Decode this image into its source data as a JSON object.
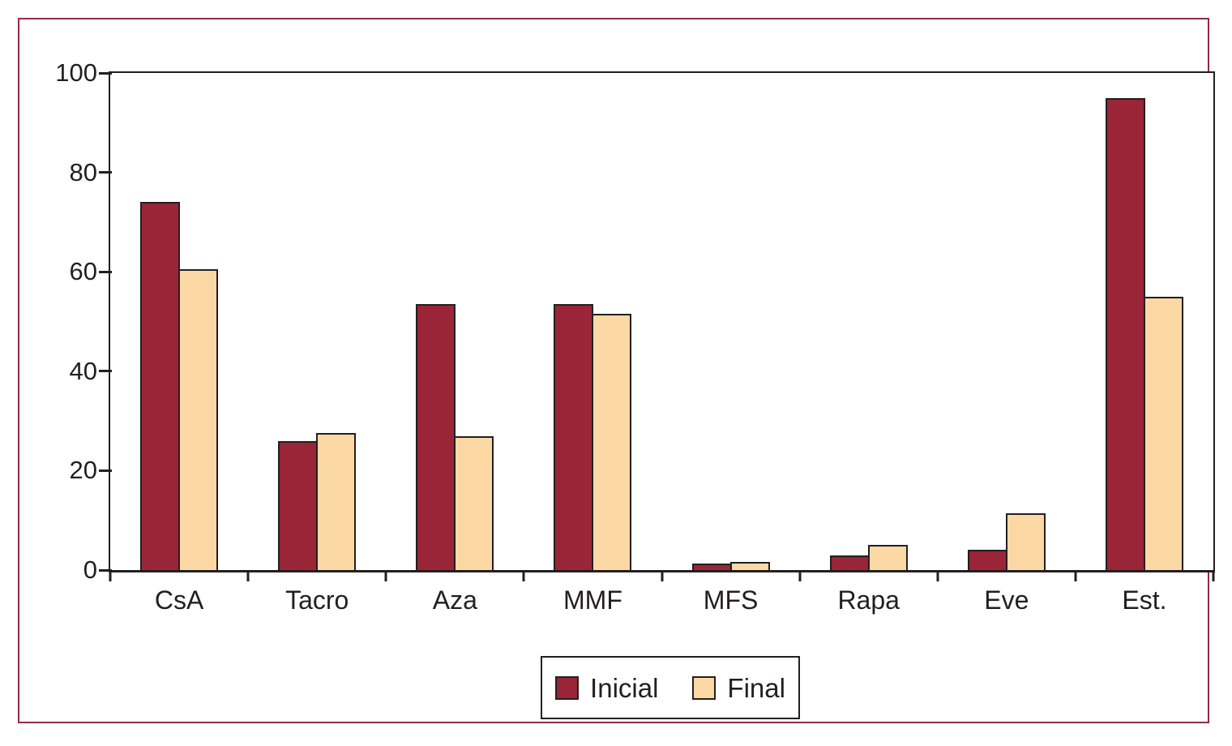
{
  "chart_data": {
    "type": "bar",
    "title": "",
    "xlabel": "",
    "ylabel": "",
    "categories": [
      "CsA",
      "Tacro",
      "Aza",
      "MMF",
      "MFS",
      "Rapa",
      "Eve",
      "Est."
    ],
    "series": [
      {
        "name": "Inicial",
        "color": "#9a2537",
        "values": [
          74,
          26,
          53.5,
          53.5,
          1.3,
          3,
          4,
          95
        ]
      },
      {
        "name": "Final",
        "color": "#fcd8a4",
        "values": [
          60.5,
          27.5,
          27,
          51.5,
          1.6,
          5,
          11.5,
          55
        ]
      }
    ],
    "ylim": [
      0,
      100
    ],
    "yticks": [
      0,
      20,
      40,
      60,
      80,
      100
    ],
    "grid": false,
    "legend_position": "bottom-center"
  },
  "colors": {
    "frame_border": "#942a42",
    "bar_outline": "#231f20",
    "axis": "#231f20",
    "background": "#ffffff"
  }
}
